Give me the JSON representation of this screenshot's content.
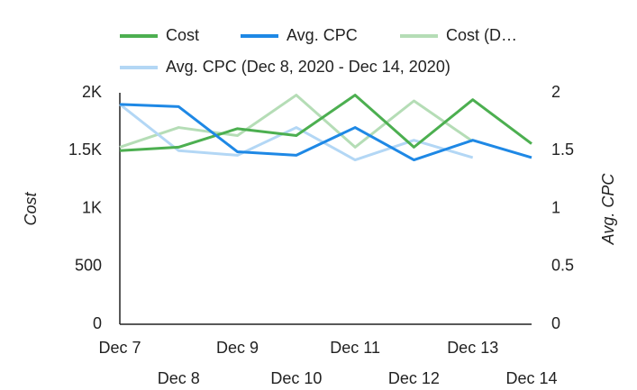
{
  "chart_data": {
    "type": "line",
    "y_label": "Cost",
    "y2_label": "Avg. CPC",
    "categories": [
      "Dec 7",
      "Dec 8",
      "Dec 9",
      "Dec 10",
      "Dec 11",
      "Dec 12",
      "Dec 13",
      "Dec 14"
    ],
    "series": [
      {
        "name": "Cost",
        "color": "#4caf50",
        "values": [
          1500,
          1530,
          1690,
          1630,
          1980,
          1530,
          1940,
          1560
        ]
      },
      {
        "name": "Avg. CPC",
        "color": "#1e88e5",
        "axis": "y2",
        "values": [
          1.9,
          1.88,
          1.49,
          1.46,
          1.7,
          1.42,
          1.59,
          1.44
        ]
      },
      {
        "name": "Cost (D…",
        "color": "#b5ddb6",
        "values": [
          1530,
          1700,
          1630,
          1980,
          1530,
          1930,
          1580,
          null
        ]
      },
      {
        "name": "Avg. CPC (Dec 8, 2020 - Dec 14, 2020)",
        "color": "#b3d7f5",
        "axis": "y2",
        "values": [
          1.9,
          1.5,
          1.46,
          1.7,
          1.42,
          1.59,
          1.44,
          null
        ]
      }
    ],
    "ylim": [
      0,
      2000
    ],
    "yticks": [
      0,
      500,
      {
        "value": 1000,
        "label": "1K"
      },
      {
        "value": 1500,
        "label": "1.5K"
      },
      {
        "value": 2000,
        "label": "2K"
      }
    ],
    "y2lim": [
      0,
      2
    ],
    "y2ticks": [
      0,
      0.5,
      1,
      1.5,
      2
    ],
    "grid": false
  }
}
